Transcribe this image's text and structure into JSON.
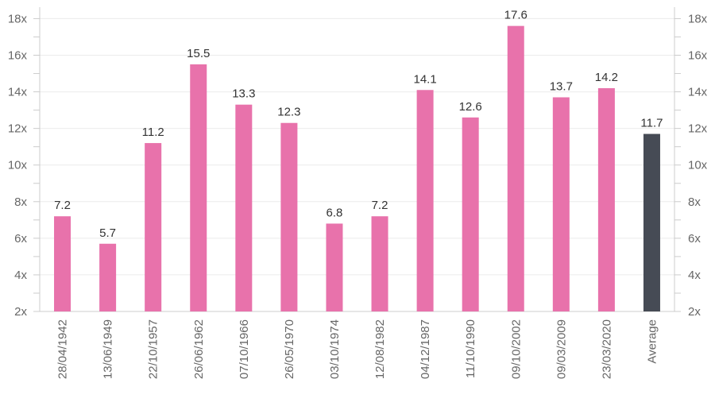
{
  "chart_data": {
    "type": "bar",
    "categories": [
      "28/04/1942",
      "13/06/1949",
      "22/10/1957",
      "26/06/1962",
      "07/10/1966",
      "26/05/1970",
      "03/10/1974",
      "12/08/1982",
      "04/12/1987",
      "11/10/1990",
      "09/10/2002",
      "09/03/2009",
      "23/03/2020",
      "Average"
    ],
    "values": [
      7.2,
      5.7,
      11.2,
      15.5,
      13.3,
      12.3,
      6.8,
      7.2,
      14.1,
      12.6,
      17.6,
      13.7,
      14.2,
      11.7
    ],
    "value_labels": [
      "7.2",
      "5.7",
      "11.2",
      "15.5",
      "13.3",
      "12.3",
      "6.8",
      "7.2",
      "14.1",
      "12.6",
      "17.6",
      "13.7",
      "14.2",
      "11.7"
    ],
    "highlight_index": 13,
    "colors": {
      "bar": "#e872ab",
      "highlight": "#464b55"
    },
    "ylim": [
      2,
      18.8
    ],
    "yticks": [
      2,
      4,
      6,
      8,
      10,
      12,
      14,
      16,
      18
    ],
    "ytick_labels": [
      "2x",
      "4x",
      "6x",
      "8x",
      "10x",
      "12x",
      "14x",
      "16x",
      "18x"
    ],
    "title": "",
    "xlabel": "",
    "ylabel": "",
    "grid": true,
    "legend": "none"
  }
}
